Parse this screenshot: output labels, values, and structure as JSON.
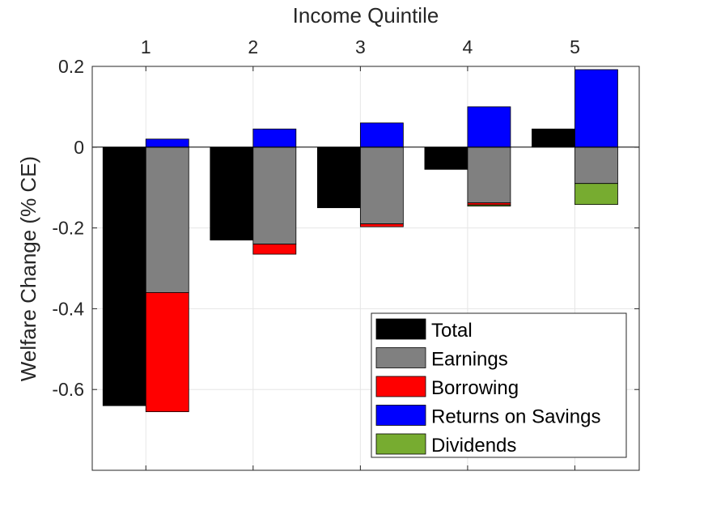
{
  "chart_data": {
    "type": "bar",
    "stacked": true,
    "title": "",
    "xlabel": "Income Quintile",
    "xlabel_position": "top",
    "ylabel": "Welfare Change (% CE)",
    "ylim": [
      -0.8,
      0.2
    ],
    "yticks": [
      0.2,
      0,
      -0.2,
      -0.4,
      -0.6
    ],
    "ytick_labels": [
      "0.2",
      "0",
      "-0.2",
      "-0.4",
      "-0.6"
    ],
    "categories": [
      "1",
      "2",
      "3",
      "4",
      "5"
    ],
    "grid": true,
    "legend_position": "bottom-right",
    "series": [
      {
        "name": "Total",
        "color": "#000000",
        "group": "total",
        "values": [
          -0.64,
          -0.23,
          -0.15,
          -0.055,
          0.045
        ]
      },
      {
        "name": "Earnings",
        "color": "#808080",
        "group": "components",
        "values": [
          -0.36,
          -0.24,
          -0.19,
          -0.138,
          -0.09
        ]
      },
      {
        "name": "Borrowing",
        "color": "#ff0000",
        "group": "components",
        "values": [
          -0.295,
          -0.025,
          -0.007,
          -0.005,
          0.0
        ]
      },
      {
        "name": "Returns on Savings",
        "color": "#0000ff",
        "group": "components",
        "values": [
          0.02,
          0.045,
          0.06,
          0.1,
          0.192
        ]
      },
      {
        "name": "Dividends",
        "color": "#77ac30",
        "group": "components",
        "values": [
          0.0,
          0.0,
          0.0,
          -0.003,
          -0.052
        ]
      }
    ]
  }
}
